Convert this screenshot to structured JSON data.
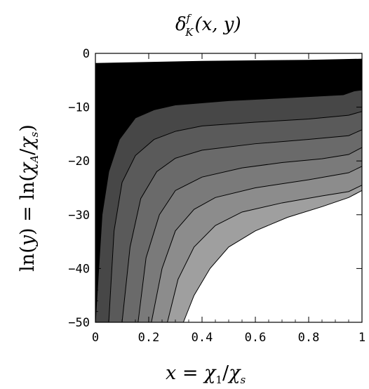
{
  "chart_data": {
    "type": "contour",
    "title": "δ_K^f(x, y)",
    "xlabel": "x = χ1/χs",
    "ylabel": "ln(y) = ln(χA/χs)",
    "xlim": [
      0,
      1
    ],
    "ylim": [
      -50,
      0
    ],
    "x_ticks": [
      "0",
      "0.2",
      "0.4",
      "0.6",
      "0.8",
      "1"
    ],
    "y_ticks": [
      "0",
      "-10",
      "-20",
      "-30",
      "-40",
      "-50"
    ],
    "contour_boundaries": [
      {
        "points": [
          [
            0.0,
            -1.8
          ],
          [
            0.4,
            -1.4
          ],
          [
            0.8,
            -1.2
          ],
          [
            1.0,
            -1.0
          ]
        ]
      },
      {
        "points": [
          [
            0.0,
            -50
          ],
          [
            0.025,
            -30
          ],
          [
            0.05,
            -22
          ],
          [
            0.09,
            -16
          ],
          [
            0.15,
            -12
          ],
          [
            0.22,
            -10.5
          ],
          [
            0.3,
            -9.6
          ],
          [
            0.5,
            -8.8
          ],
          [
            0.7,
            -8.3
          ],
          [
            0.93,
            -7.7
          ],
          [
            0.97,
            -7.0
          ],
          [
            1.0,
            -6.8
          ]
        ]
      },
      {
        "points": [
          [
            0.05,
            -50
          ],
          [
            0.07,
            -33
          ],
          [
            0.1,
            -24
          ],
          [
            0.15,
            -19
          ],
          [
            0.22,
            -16
          ],
          [
            0.3,
            -14.5
          ],
          [
            0.4,
            -13.5
          ],
          [
            0.6,
            -12.8
          ],
          [
            0.8,
            -12.2
          ],
          [
            0.95,
            -11.5
          ],
          [
            1.0,
            -10.8
          ]
        ]
      },
      {
        "points": [
          [
            0.1,
            -50
          ],
          [
            0.13,
            -36
          ],
          [
            0.17,
            -27
          ],
          [
            0.23,
            -22
          ],
          [
            0.3,
            -19.5
          ],
          [
            0.4,
            -18
          ],
          [
            0.6,
            -16.8
          ],
          [
            0.8,
            -16
          ],
          [
            0.95,
            -15.3
          ],
          [
            1.0,
            -14.2
          ]
        ]
      },
      {
        "points": [
          [
            0.16,
            -50
          ],
          [
            0.19,
            -38
          ],
          [
            0.24,
            -30
          ],
          [
            0.3,
            -25.5
          ],
          [
            0.4,
            -23
          ],
          [
            0.55,
            -21.3
          ],
          [
            0.7,
            -20.3
          ],
          [
            0.85,
            -19.6
          ],
          [
            0.95,
            -18.8
          ],
          [
            1.0,
            -17.5
          ]
        ]
      },
      {
        "points": [
          [
            0.21,
            -50
          ],
          [
            0.25,
            -40
          ],
          [
            0.3,
            -33
          ],
          [
            0.37,
            -29
          ],
          [
            0.45,
            -26.8
          ],
          [
            0.6,
            -25
          ],
          [
            0.8,
            -23.5
          ],
          [
            0.95,
            -22.2
          ],
          [
            1.0,
            -21
          ]
        ]
      },
      {
        "points": [
          [
            0.27,
            -50
          ],
          [
            0.31,
            -42
          ],
          [
            0.37,
            -36
          ],
          [
            0.45,
            -32
          ],
          [
            0.55,
            -29.5
          ],
          [
            0.7,
            -27.8
          ],
          [
            0.85,
            -26.5
          ],
          [
            0.95,
            -25.7
          ],
          [
            1.0,
            -24.5
          ]
        ]
      },
      {
        "points": [
          [
            0.33,
            -50
          ],
          [
            0.37,
            -45
          ],
          [
            0.43,
            -40
          ],
          [
            0.5,
            -36
          ],
          [
            0.6,
            -33
          ],
          [
            0.72,
            -30.5
          ],
          [
            0.85,
            -28.5
          ],
          [
            0.95,
            -26.8
          ],
          [
            1.0,
            -25.5
          ]
        ]
      }
    ],
    "region_fills": [
      "#000000",
      "#292929",
      "#474747",
      "#5a5a5a",
      "#6a6a6a",
      "#7a7a7a",
      "#8c8c8c",
      "#9f9f9f",
      "#ffffff"
    ]
  }
}
